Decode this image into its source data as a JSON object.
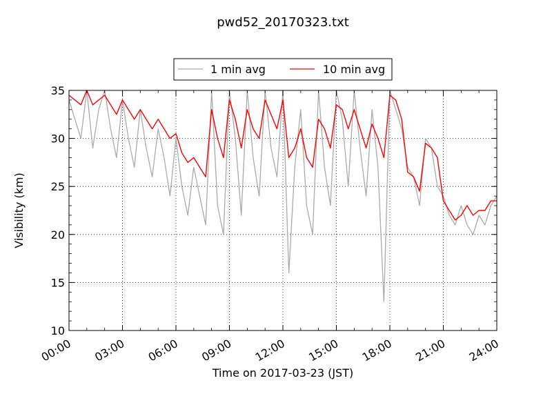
{
  "chart_data": {
    "type": "line",
    "title": "pwd52_20170323.txt",
    "xlabel": "Time on 2017-03-23 (JST)",
    "ylabel": "Visibility (km)",
    "xlim": [
      "00:00",
      "24:00"
    ],
    "ylim": [
      10,
      35
    ],
    "x_ticks": [
      "00:00",
      "03:00",
      "06:00",
      "09:00",
      "12:00",
      "15:00",
      "18:00",
      "21:00",
      "24:00"
    ],
    "y_ticks": [
      10,
      15,
      20,
      25,
      30,
      35
    ],
    "grid": true,
    "legend_position": "top-center",
    "series": [
      {
        "name": "1 min avg",
        "color": "#aaaaaa",
        "x": [
          "00:00",
          "00:20",
          "00:40",
          "01:00",
          "01:20",
          "01:40",
          "02:00",
          "02:20",
          "02:40",
          "03:00",
          "03:20",
          "03:40",
          "04:00",
          "04:20",
          "04:40",
          "05:00",
          "05:20",
          "05:40",
          "06:00",
          "06:20",
          "06:40",
          "07:00",
          "07:20",
          "07:40",
          "08:00",
          "08:20",
          "08:40",
          "09:00",
          "09:20",
          "09:40",
          "10:00",
          "10:20",
          "10:40",
          "11:00",
          "11:20",
          "11:40",
          "12:00",
          "12:20",
          "12:40",
          "13:00",
          "13:20",
          "13:40",
          "14:00",
          "14:20",
          "14:40",
          "15:00",
          "15:20",
          "15:40",
          "16:00",
          "16:20",
          "16:40",
          "17:00",
          "17:20",
          "17:40",
          "18:00",
          "18:20",
          "18:40",
          "19:00",
          "19:20",
          "19:40",
          "20:00",
          "20:20",
          "20:40",
          "21:00",
          "21:20",
          "21:40",
          "22:00",
          "22:20",
          "22:40",
          "23:00",
          "23:20",
          "23:40",
          "24:00"
        ],
        "values": [
          34,
          32,
          30,
          35,
          29,
          33,
          35,
          31,
          28,
          34,
          30,
          27,
          33,
          29,
          26,
          31,
          28,
          24,
          30,
          25,
          22,
          27,
          24,
          21,
          35,
          23,
          20,
          35,
          30,
          22,
          35,
          28,
          24,
          35,
          29,
          26,
          35,
          16,
          27,
          33,
          23,
          20,
          35,
          27,
          23,
          35,
          32,
          25,
          35,
          29,
          24,
          33,
          27,
          13,
          35,
          33,
          31,
          27,
          26,
          23,
          30,
          29,
          25,
          24,
          22,
          21,
          23,
          21,
          20,
          22,
          21,
          23,
          24
        ]
      },
      {
        "name": "10 min avg",
        "color": "#ff0000",
        "x": [
          "00:00",
          "00:20",
          "00:40",
          "01:00",
          "01:20",
          "01:40",
          "02:00",
          "02:20",
          "02:40",
          "03:00",
          "03:20",
          "03:40",
          "04:00",
          "04:20",
          "04:40",
          "05:00",
          "05:20",
          "05:40",
          "06:00",
          "06:20",
          "06:40",
          "07:00",
          "07:20",
          "07:40",
          "08:00",
          "08:20",
          "08:40",
          "09:00",
          "09:20",
          "09:40",
          "10:00",
          "10:20",
          "10:40",
          "11:00",
          "11:20",
          "11:40",
          "12:00",
          "12:20",
          "12:40",
          "13:00",
          "13:20",
          "13:40",
          "14:00",
          "14:20",
          "14:40",
          "15:00",
          "15:20",
          "15:40",
          "16:00",
          "16:20",
          "16:40",
          "17:00",
          "17:20",
          "17:40",
          "18:00",
          "18:20",
          "18:40",
          "19:00",
          "19:20",
          "19:40",
          "20:00",
          "20:20",
          "20:40",
          "21:00",
          "21:20",
          "21:40",
          "22:00",
          "22:20",
          "22:40",
          "23:00",
          "23:20",
          "23:40",
          "24:00"
        ],
        "values": [
          34.5,
          34,
          33.5,
          35,
          33.5,
          34,
          34.5,
          33.5,
          32.5,
          34,
          33,
          32,
          33,
          32,
          31,
          32,
          31,
          30,
          30.5,
          28.5,
          27.5,
          28,
          27,
          26,
          33,
          30,
          28,
          34,
          32,
          29,
          33,
          31,
          30,
          34,
          32.5,
          31,
          34,
          28,
          29,
          31,
          28,
          27,
          32,
          31,
          29,
          33.5,
          33,
          31,
          33,
          31,
          29,
          31.5,
          30,
          28,
          34.5,
          34,
          32,
          26.5,
          26,
          24.5,
          29.5,
          29,
          28,
          23.5,
          22.5,
          21.5,
          22,
          23,
          22,
          22.5,
          22.5,
          23.5,
          23.5
        ]
      }
    ]
  }
}
